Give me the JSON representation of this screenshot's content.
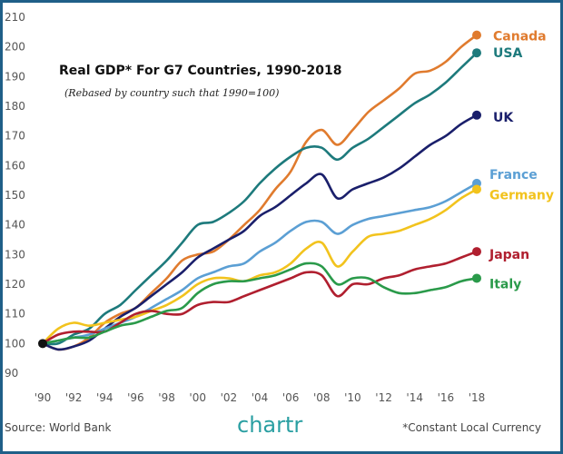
{
  "chart_data": {
    "type": "line",
    "title": "Real GDP* For G7 Countries, 1990-2018",
    "subtitle": "(Rebased by country such that 1990=100)",
    "xlabel": "",
    "ylabel": "",
    "ylim": [
      90,
      210
    ],
    "xlim": [
      1990,
      2018
    ],
    "grid": false,
    "x_tick_labels": [
      "'90",
      "'92",
      "'94",
      "'96",
      "'98",
      "'00",
      "'02",
      "'04",
      "'06",
      "'08",
      "'10",
      "'12",
      "'14",
      "'16",
      "'18"
    ],
    "y_ticks": [
      90,
      100,
      110,
      120,
      130,
      140,
      150,
      160,
      170,
      180,
      190,
      200,
      210
    ],
    "x": [
      1990,
      1991,
      1992,
      1993,
      1994,
      1995,
      1996,
      1997,
      1998,
      1999,
      2000,
      2001,
      2002,
      2003,
      2004,
      2005,
      2006,
      2007,
      2008,
      2009,
      2010,
      2011,
      2012,
      2013,
      2014,
      2015,
      2016,
      2017,
      2018
    ],
    "series": [
      {
        "name": "Canada",
        "color": "#e07b2e",
        "values": [
          100,
          98,
          99,
          102,
          107,
          110,
          112,
          117,
          122,
          128,
          130,
          131,
          135,
          140,
          145,
          152,
          158,
          168,
          172,
          167,
          172,
          178,
          182,
          186,
          191,
          192,
          195,
          200,
          204
        ]
      },
      {
        "name": "USA",
        "color": "#1d7a7c",
        "values": [
          100,
          100,
          103,
          105,
          110,
          113,
          118,
          123,
          128,
          134,
          140,
          141,
          144,
          148,
          154,
          159,
          163,
          166,
          166,
          162,
          166,
          169,
          173,
          177,
          181,
          184,
          188,
          193,
          198
        ]
      },
      {
        "name": "UK",
        "color": "#1a1f6b",
        "values": [
          100,
          98,
          99,
          101,
          105,
          109,
          112,
          116,
          120,
          124,
          129,
          132,
          135,
          138,
          143,
          146,
          150,
          154,
          157,
          149,
          152,
          154,
          156,
          159,
          163,
          167,
          170,
          174,
          177
        ]
      },
      {
        "name": "France",
        "color": "#5b9fd4",
        "values": [
          100,
          101,
          102,
          103,
          105,
          107,
          109,
          112,
          115,
          118,
          122,
          124,
          126,
          127,
          131,
          134,
          138,
          141,
          141,
          137,
          140,
          142,
          143,
          144,
          145,
          146,
          148,
          151,
          154
        ]
      },
      {
        "name": "Germany",
        "color": "#f2c31d",
        "values": [
          100,
          105,
          107,
          106,
          107,
          108,
          109,
          111,
          113,
          116,
          120,
          122,
          122,
          121,
          123,
          124,
          127,
          132,
          134,
          126,
          131,
          136,
          137,
          138,
          140,
          142,
          145,
          149,
          152
        ]
      },
      {
        "name": "Japan",
        "color": "#b01f2f",
        "values": [
          100,
          103,
          104,
          104,
          104,
          107,
          110,
          111,
          110,
          110,
          113,
          114,
          114,
          116,
          118,
          120,
          122,
          124,
          123,
          116,
          120,
          120,
          122,
          123,
          125,
          126,
          127,
          129,
          131
        ]
      },
      {
        "name": "Italy",
        "color": "#2a9a4a",
        "values": [
          100,
          101,
          102,
          102,
          104,
          106,
          107,
          109,
          111,
          112,
          117,
          120,
          121,
          121,
          122,
          123,
          125,
          127,
          126,
          120,
          122,
          122,
          119,
          117,
          117,
          118,
          119,
          121,
          122
        ]
      }
    ]
  },
  "footer": {
    "source": "Source: World Bank",
    "brand": "chartr",
    "note": "*Constant Local Currency"
  }
}
